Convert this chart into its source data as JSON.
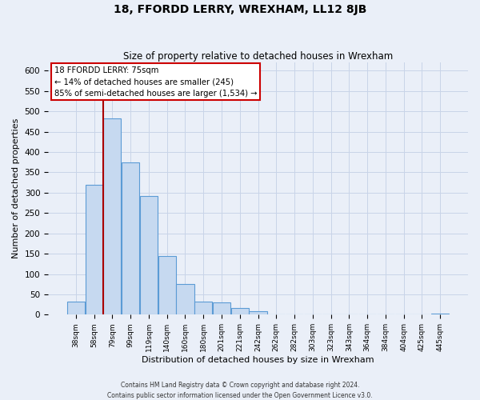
{
  "title": "18, FFORDD LERRY, WREXHAM, LL12 8JB",
  "subtitle": "Size of property relative to detached houses in Wrexham",
  "xlabel": "Distribution of detached houses by size in Wrexham",
  "ylabel": "Number of detached properties",
  "bin_labels": [
    "38sqm",
    "58sqm",
    "79sqm",
    "99sqm",
    "119sqm",
    "140sqm",
    "160sqm",
    "180sqm",
    "201sqm",
    "221sqm",
    "242sqm",
    "262sqm",
    "282sqm",
    "303sqm",
    "323sqm",
    "343sqm",
    "364sqm",
    "384sqm",
    "404sqm",
    "425sqm",
    "445sqm"
  ],
  "bar_values": [
    32,
    320,
    483,
    375,
    292,
    145,
    76,
    33,
    30,
    17,
    8,
    1,
    1,
    0,
    1,
    0,
    1,
    0,
    0,
    0,
    2
  ],
  "bar_color": "#c6d9f0",
  "bar_edge_color": "#5b9bd5",
  "vline_x": 1.5,
  "vline_color": "#aa0000",
  "annotation_line1": "18 FFORDD LERRY: 75sqm",
  "annotation_line2": "← 14% of detached houses are smaller (245)",
  "annotation_line3": "85% of semi-detached houses are larger (1,534) →",
  "annotation_box_edge_color": "#cc0000",
  "ylim": [
    0,
    620
  ],
  "yticks": [
    0,
    50,
    100,
    150,
    200,
    250,
    300,
    350,
    400,
    450,
    500,
    550,
    600
  ],
  "footer_line1": "Contains HM Land Registry data © Crown copyright and database right 2024.",
  "footer_line2": "Contains public sector information licensed under the Open Government Licence v3.0.",
  "grid_color": "#c8d4e8",
  "background_color": "#eaeff8"
}
